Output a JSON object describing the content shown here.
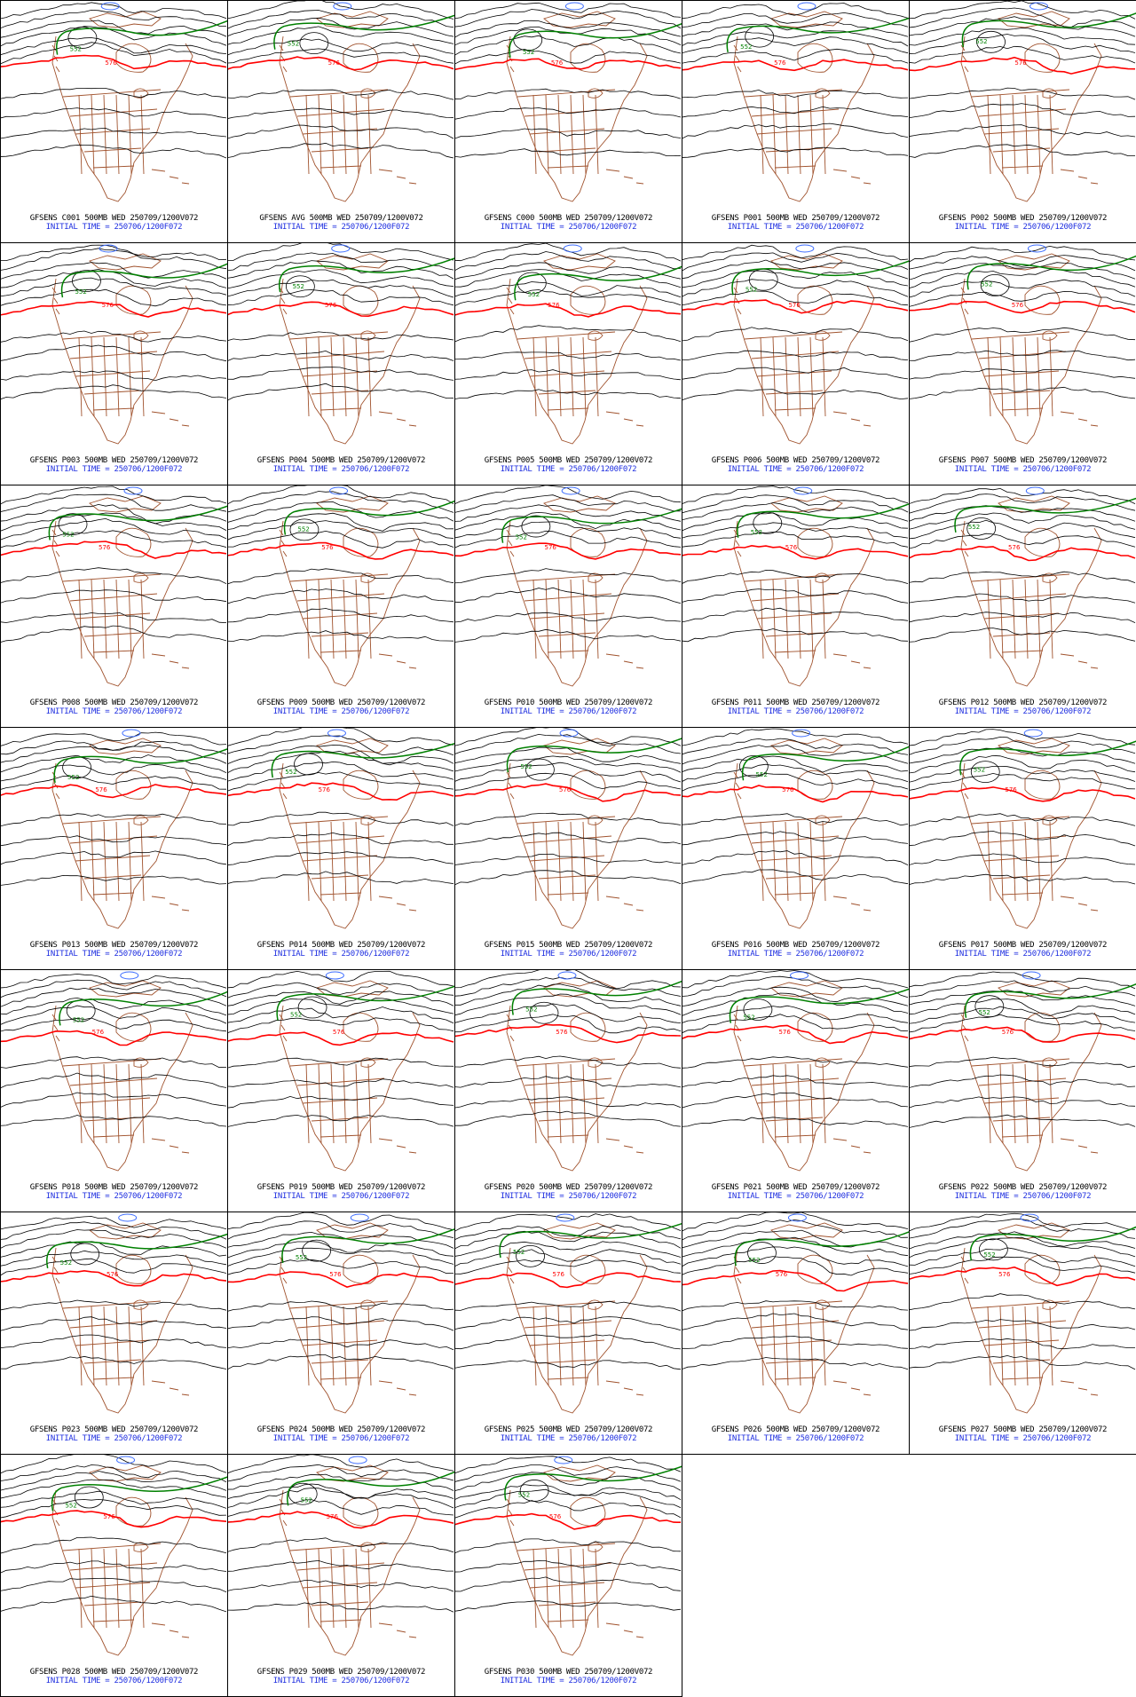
{
  "panels": [
    {
      "caption": "GFSENS C001 500MB WED 250709/1200V072",
      "init": "INITIAL TIME = 250706/1200F072"
    },
    {
      "caption": "GFSENS AVG 500MB WED 250709/1200V072",
      "init": "INITIAL TIME = 250706/1200F072"
    },
    {
      "caption": "GFSENS C000 500MB WED 250709/1200V072",
      "init": "INITIAL TIME = 250706/1200F072"
    },
    {
      "caption": "GFSENS P001 500MB WED 250709/1200V072",
      "init": "INITIAL TIME = 250706/1200F072"
    },
    {
      "caption": "GFSENS P002 500MB WED 250709/1200V072",
      "init": "INITIAL TIME = 250706/1200F072"
    },
    {
      "caption": "GFSENS P003 500MB WED 250709/1200V072",
      "init": "INITIAL TIME = 250706/1200F072"
    },
    {
      "caption": "GFSENS P004 500MB WED 250709/1200V072",
      "init": "INITIAL TIME = 250706/1200F072"
    },
    {
      "caption": "GFSENS P005 500MB WED 250709/1200V072",
      "init": "INITIAL TIME = 250706/1200F072"
    },
    {
      "caption": "GFSENS P006 500MB WED 250709/1200V072",
      "init": "INITIAL TIME = 250706/1200F072"
    },
    {
      "caption": "GFSENS P007 500MB WED 250709/1200V072",
      "init": "INITIAL TIME = 250706/1200F072"
    },
    {
      "caption": "GFSENS P008 500MB WED 250709/1200V072",
      "init": "INITIAL TIME = 250706/1200F072"
    },
    {
      "caption": "GFSENS P009 500MB WED 250709/1200V072",
      "init": "INITIAL TIME = 250706/1200F072"
    },
    {
      "caption": "GFSENS P010 500MB WED 250709/1200V072",
      "init": "INITIAL TIME = 250706/1200F072"
    },
    {
      "caption": "GFSENS P011 500MB WED 250709/1200V072",
      "init": "INITIAL TIME = 250706/1200F072"
    },
    {
      "caption": "GFSENS P012 500MB WED 250709/1200V072",
      "init": "INITIAL TIME = 250706/1200F072"
    },
    {
      "caption": "GFSENS P013 500MB WED 250709/1200V072",
      "init": "INITIAL TIME = 250706/1200F072"
    },
    {
      "caption": "GFSENS P014 500MB WED 250709/1200V072",
      "init": "INITIAL TIME = 250706/1200F072"
    },
    {
      "caption": "GFSENS P015 500MB WED 250709/1200V072",
      "init": "INITIAL TIME = 250706/1200F072"
    },
    {
      "caption": "GFSENS P016 500MB WED 250709/1200V072",
      "init": "INITIAL TIME = 250706/1200F072"
    },
    {
      "caption": "GFSENS P017 500MB WED 250709/1200V072",
      "init": "INITIAL TIME = 250706/1200F072"
    },
    {
      "caption": "GFSENS P018 500MB WED 250709/1200V072",
      "init": "INITIAL TIME = 250706/1200F072"
    },
    {
      "caption": "GFSENS P019 500MB WED 250709/1200V072",
      "init": "INITIAL TIME = 250706/1200F072"
    },
    {
      "caption": "GFSENS P020 500MB WED 250709/1200V072",
      "init": "INITIAL TIME = 250706/1200F072"
    },
    {
      "caption": "GFSENS P021 500MB WED 250709/1200V072",
      "init": "INITIAL TIME = 250706/1200F072"
    },
    {
      "caption": "GFSENS P022 500MB WED 250709/1200V072",
      "init": "INITIAL TIME = 250706/1200F072"
    },
    {
      "caption": "GFSENS P023 500MB WED 250709/1200V072",
      "init": "INITIAL TIME = 250706/1200F072"
    },
    {
      "caption": "GFSENS P024 500MB WED 250709/1200V072",
      "init": "INITIAL TIME = 250706/1200F072"
    },
    {
      "caption": "GFSENS P025 500MB WED 250709/1200V072",
      "init": "INITIAL TIME = 250706/1200F072"
    },
    {
      "caption": "GFSENS P026 500MB WED 250709/1200V072",
      "init": "INITIAL TIME = 250706/1200F072"
    },
    {
      "caption": "GFSENS P027 500MB WED 250709/1200V072",
      "init": "INITIAL TIME = 250706/1200F072"
    },
    {
      "caption": "GFSENS P028 500MB WED 250709/1200V072",
      "init": "INITIAL TIME = 250706/1200F072"
    },
    {
      "caption": "GFSENS P029 500MB WED 250709/1200V072",
      "init": "INITIAL TIME = 250706/1200F072"
    },
    {
      "caption": "GFSENS P030 500MB WED 250709/1200V072",
      "init": "INITIAL TIME = 250706/1200F072"
    }
  ],
  "contour_labels": {
    "green": "552",
    "red": "576"
  },
  "colors": {
    "contour": "#000000",
    "green_contour": "#008000",
    "red_contour": "#ff0000",
    "map_lines": "#a0522d",
    "caption_init": "#1f2fe0",
    "low_blue": "#3c6cff"
  }
}
